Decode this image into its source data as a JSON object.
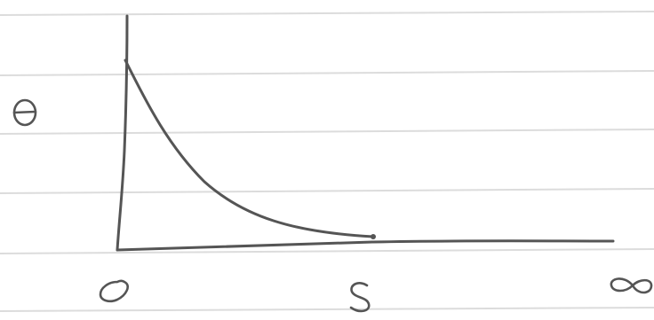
{
  "labels": {
    "y_axis": "θ",
    "x_origin": "0",
    "x_mark": "S",
    "x_end": "∞"
  },
  "colors": {
    "ink": "#555555",
    "paper": "#ffffff",
    "ruled_lines": "#dcdcdc"
  }
}
